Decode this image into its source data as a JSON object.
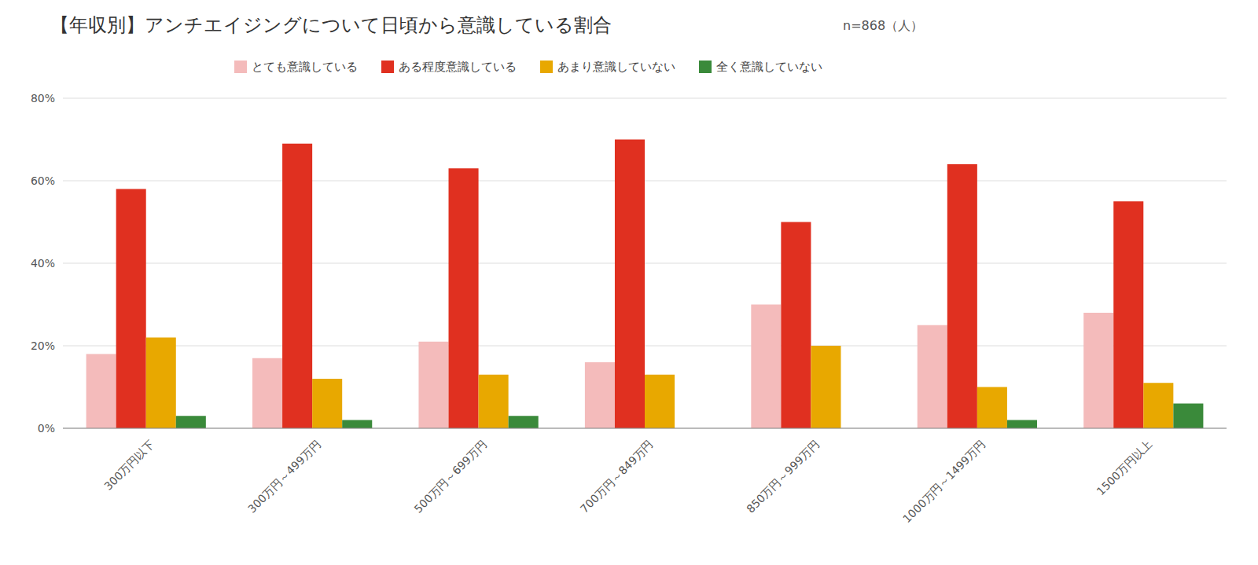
{
  "chart_data": {
    "type": "bar",
    "title": "【年収別】アンチエイジングについて日頃から意識している割合",
    "subtitle": "n=868（人）",
    "categories": [
      "300万円以下",
      "300万円～499万円",
      "500万円～699万円",
      "700万円～849万円",
      "850万円～999万円",
      "1000万円～1499万円",
      "1500万円以上"
    ],
    "series": [
      {
        "name": "とても意識している",
        "color": "#F4BBBB",
        "values": [
          18,
          17,
          21,
          16,
          30,
          25,
          28
        ]
      },
      {
        "name": "ある程度意識している",
        "color": "#E03020",
        "values": [
          58,
          69,
          63,
          70,
          50,
          64,
          55
        ]
      },
      {
        "name": "あまり意識していない",
        "color": "#E8A800",
        "values": [
          22,
          12,
          13,
          13,
          20,
          10,
          11
        ]
      },
      {
        "name": "全く意識していない",
        "color": "#3A8A3A",
        "values": [
          3,
          2,
          3,
          0,
          0,
          2,
          6
        ]
      }
    ],
    "ylim": [
      0,
      80
    ],
    "yticks": [
      {
        "value": 0,
        "label": "0%"
      },
      {
        "value": 20,
        "label": "20%"
      },
      {
        "value": 40,
        "label": "40%"
      },
      {
        "value": 60,
        "label": "60%"
      },
      {
        "value": 80,
        "label": "80%"
      }
    ],
    "grid": true,
    "legend": "top"
  }
}
